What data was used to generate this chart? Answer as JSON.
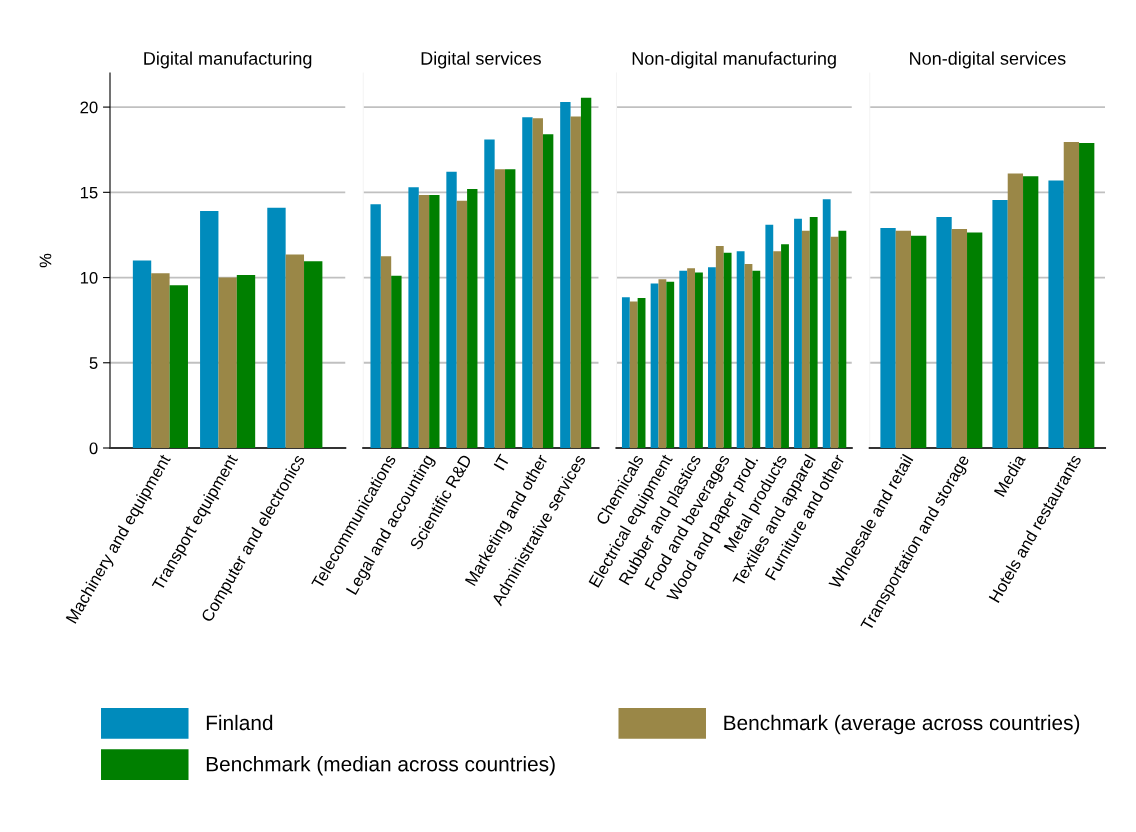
{
  "chart_data": [
    {
      "type": "bar",
      "title": "Digital manufacturing",
      "ylabel": "%",
      "categories": [
        "Machinery and equipment",
        "Transport equipment",
        "Computer and electronics"
      ],
      "ylim": [
        0,
        22
      ],
      "yticks": [
        0,
        5,
        10,
        15,
        20
      ],
      "grid": "y",
      "legend": "bottom",
      "series": [
        {
          "name": "Finland",
          "color": "#008bbc",
          "values": [
            11.0,
            13.9,
            14.1
          ]
        },
        {
          "name": "Benchmark (average across countries)",
          "color": "#9a8747",
          "values": [
            10.25,
            10.0,
            11.35
          ]
        },
        {
          "name": "Benchmark (median across countries)",
          "color": "#007f00",
          "values": [
            9.55,
            10.15,
            10.95
          ]
        }
      ]
    },
    {
      "type": "bar",
      "title": "Digital services",
      "categories": [
        "Telecommunications",
        "Legal and accounting",
        "Scientific R&D",
        "IT",
        "Marketing and other",
        "Administrative services"
      ],
      "ylim": [
        0,
        22
      ],
      "yticks": [
        0,
        5,
        10,
        15,
        20
      ],
      "grid": "y",
      "tick_labels": "x",
      "series": [
        {
          "name": "Finland",
          "color": "#008bbc",
          "values": [
            14.3,
            15.3,
            16.2,
            18.1,
            19.4,
            20.3
          ]
        },
        {
          "name": "Benchmark (average across countries)",
          "color": "#9a8747",
          "values": [
            11.25,
            14.85,
            14.5,
            16.35,
            19.35,
            19.45
          ]
        },
        {
          "name": "Benchmark (median across countries)",
          "color": "#007f00",
          "values": [
            10.1,
            14.85,
            15.2,
            16.35,
            18.4,
            20.55
          ]
        }
      ]
    },
    {
      "type": "bar",
      "title": "Non-digital manufacturing",
      "categories": [
        "Chemicals",
        "Electrical equipment",
        "Rubber and plastics",
        "Food and beverages",
        "Wood and paper prod.",
        "Metal products",
        "Textiles and apparel",
        "Furniture and other"
      ],
      "ylim": [
        0,
        22
      ],
      "yticks": [
        0,
        5,
        10,
        15,
        20
      ],
      "grid": "y",
      "tick_labels": "x",
      "series": [
        {
          "name": "Finland",
          "color": "#008bbc",
          "values": [
            8.85,
            9.65,
            10.4,
            10.6,
            11.55,
            13.1,
            13.45,
            14.6
          ]
        },
        {
          "name": "Benchmark (average across countries)",
          "color": "#9a8747",
          "values": [
            8.6,
            9.9,
            10.55,
            11.85,
            10.8,
            11.55,
            12.75,
            12.4
          ]
        },
        {
          "name": "Benchmark (median across countries)",
          "color": "#007f00",
          "values": [
            8.8,
            9.75,
            10.3,
            11.45,
            10.4,
            11.95,
            13.55,
            12.75
          ]
        }
      ]
    },
    {
      "type": "bar",
      "title": "Non-digital services",
      "categories": [
        "Wholesale and retail",
        "Transportation and storage",
        "Media",
        "Hotels and restaurants"
      ],
      "ylim": [
        0,
        22
      ],
      "yticks": [
        0,
        5,
        10,
        15,
        20
      ],
      "grid": "y",
      "tick_labels": "x",
      "series": [
        {
          "name": "Finland",
          "color": "#008bbc",
          "values": [
            12.9,
            13.55,
            14.55,
            15.7
          ]
        },
        {
          "name": "Benchmark (average across countries)",
          "color": "#9a8747",
          "values": [
            12.75,
            12.85,
            16.1,
            17.95
          ]
        },
        {
          "name": "Benchmark (median across countries)",
          "color": "#007f00",
          "values": [
            12.45,
            12.65,
            15.95,
            17.9
          ]
        }
      ]
    }
  ]
}
